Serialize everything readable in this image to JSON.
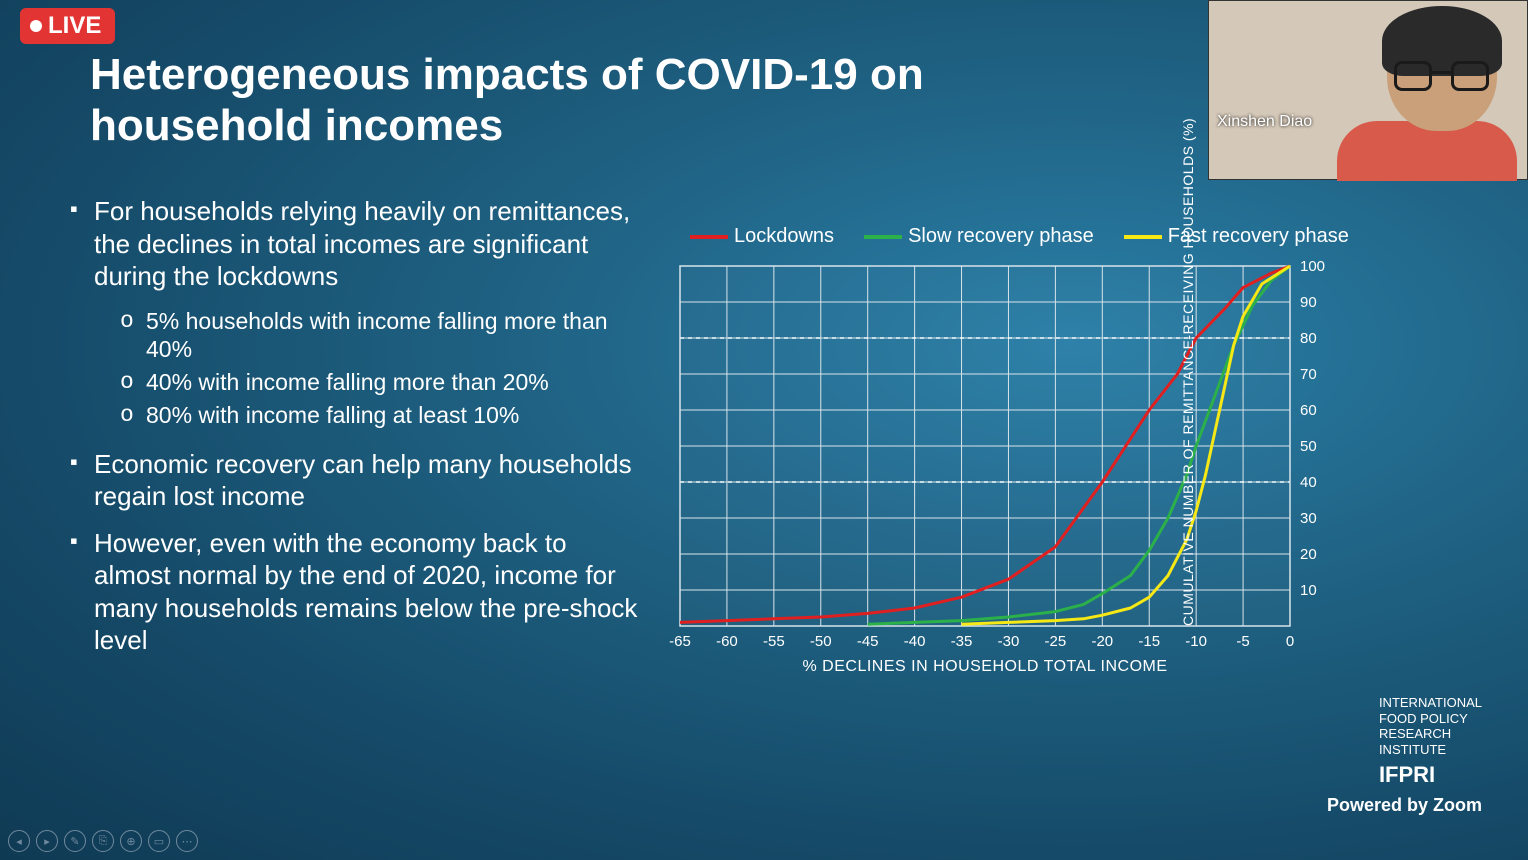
{
  "live_badge": "LIVE",
  "webcam": {
    "name": "Xinshen Diao"
  },
  "slide": {
    "title": "Heterogeneous impacts of COVID-19 on household incomes",
    "bullets": [
      {
        "text": "For households relying heavily on remittances, the declines in total incomes are significant during the lockdowns",
        "subs": [
          "5% households with income falling more than 40%",
          "40% with income falling more than 20%",
          "80% with income falling at least 10%"
        ]
      },
      {
        "text": "Economic recovery can help many households regain lost income",
        "subs": []
      },
      {
        "text": "However, even with the economy back to almost normal by the end of 2020, income for many households remains below the pre-shock level",
        "subs": []
      }
    ]
  },
  "chart": {
    "type": "line",
    "x_label": "% DECLINES IN HOUSEHOLD TOTAL INCOME",
    "y_label": "CUMULATIVE NUMBER OF REMITTANCE-RECEIVING HOUSEHOLDS (%)",
    "xlim": [
      -65,
      0
    ],
    "ylim": [
      0,
      100
    ],
    "x_ticks": [
      -65,
      -60,
      -55,
      -50,
      -45,
      -40,
      -35,
      -30,
      -25,
      -20,
      -15,
      -10,
      -5,
      0
    ],
    "y_ticks": [
      10,
      20,
      30,
      40,
      50,
      60,
      70,
      80,
      90,
      100
    ],
    "grid_color": "#d8e4ea",
    "ref_lines_y": [
      40,
      80
    ],
    "ref_line_dash": "4,4",
    "background_color": "transparent",
    "line_width": 3,
    "series": [
      {
        "name": "Lockdowns",
        "color": "#e02020",
        "points": [
          [
            -65,
            1
          ],
          [
            -60,
            1.5
          ],
          [
            -55,
            2
          ],
          [
            -50,
            2.5
          ],
          [
            -45,
            3.5
          ],
          [
            -40,
            5
          ],
          [
            -35,
            8
          ],
          [
            -30,
            13
          ],
          [
            -25,
            22
          ],
          [
            -20,
            40
          ],
          [
            -17,
            52
          ],
          [
            -15,
            60
          ],
          [
            -12,
            70
          ],
          [
            -10,
            80
          ],
          [
            -7,
            88
          ],
          [
            -5,
            94
          ],
          [
            -2,
            98
          ],
          [
            0,
            100
          ]
        ]
      },
      {
        "name": "Slow recovery phase",
        "color": "#2bb04a",
        "points": [
          [
            -45,
            0.5
          ],
          [
            -40,
            1
          ],
          [
            -35,
            1.5
          ],
          [
            -30,
            2.5
          ],
          [
            -25,
            4
          ],
          [
            -22,
            6
          ],
          [
            -20,
            9
          ],
          [
            -17,
            14
          ],
          [
            -15,
            21
          ],
          [
            -13,
            30
          ],
          [
            -11,
            42
          ],
          [
            -10,
            50
          ],
          [
            -8,
            64
          ],
          [
            -6,
            78
          ],
          [
            -4,
            89
          ],
          [
            -2,
            96
          ],
          [
            0,
            100
          ]
        ]
      },
      {
        "name": "Fast recovery phase",
        "color": "#f5e814",
        "points": [
          [
            -35,
            0.5
          ],
          [
            -30,
            1
          ],
          [
            -25,
            1.5
          ],
          [
            -22,
            2
          ],
          [
            -20,
            3
          ],
          [
            -17,
            5
          ],
          [
            -15,
            8
          ],
          [
            -13,
            14
          ],
          [
            -11,
            24
          ],
          [
            -10,
            32
          ],
          [
            -9,
            42
          ],
          [
            -8,
            54
          ],
          [
            -7,
            66
          ],
          [
            -6,
            78
          ],
          [
            -5,
            86
          ],
          [
            -3,
            95
          ],
          [
            0,
            100
          ]
        ]
      }
    ]
  },
  "branding": {
    "org_lines": [
      "INTERNATIONAL",
      "FOOD POLICY",
      "RESEARCH",
      "INSTITUTE"
    ],
    "org_short": "IFPRI",
    "powered": "Powered by Zoom"
  }
}
